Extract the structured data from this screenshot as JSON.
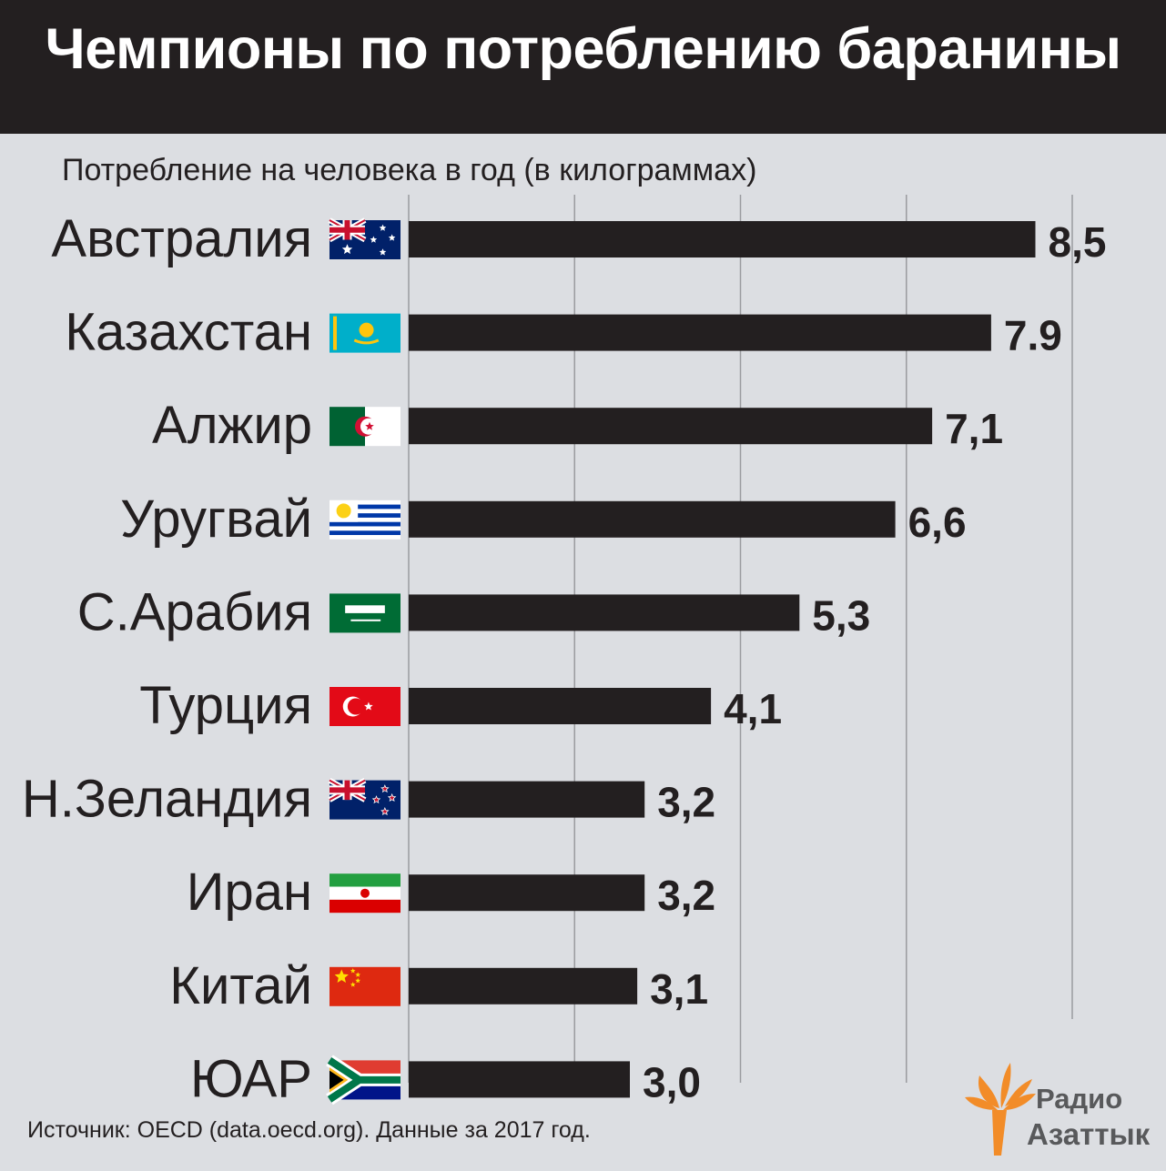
{
  "header": {
    "title": "Чемпионы по потреблению баранины",
    "subtitle": "Потребление на человека в год (в килограммах)"
  },
  "footer": {
    "source": "Источник: OECD (data.oecd.org). Данные за 2017 год."
  },
  "logo": {
    "line1": "Радио",
    "line2": "Азаттык",
    "color": "#f28c28"
  },
  "chart_data": {
    "type": "bar",
    "orientation": "horizontal",
    "title": "Чемпионы по потреблению баранины",
    "subtitle": "Потребление на человека в год (в килограммах)",
    "xlabel": "",
    "ylabel": "",
    "xlim": [
      0,
      10
    ],
    "grid": true,
    "bar_color": "#231f20",
    "categories": [
      "Австралия",
      "Казахстан",
      "Алжир",
      "Уругвай",
      "С.Арабия",
      "Турция",
      "Н.Зеландия",
      "Иран",
      "Китай",
      "ЮАР"
    ],
    "values": [
      8.5,
      7.9,
      7.1,
      6.6,
      5.3,
      4.1,
      3.2,
      3.2,
      3.1,
      3.0
    ],
    "value_labels": [
      "8,5",
      "7.9",
      "7,1",
      "6,6",
      "5,3",
      "4,1",
      "3,2",
      "3,2",
      "3,1",
      "3,0"
    ],
    "flags": [
      "australia-flag",
      "kazakhstan-flag",
      "algeria-flag",
      "uruguay-flag",
      "saudi-arabia-flag",
      "turkey-flag",
      "new-zealand-flag",
      "iran-flag",
      "china-flag",
      "south-africa-flag"
    ]
  }
}
